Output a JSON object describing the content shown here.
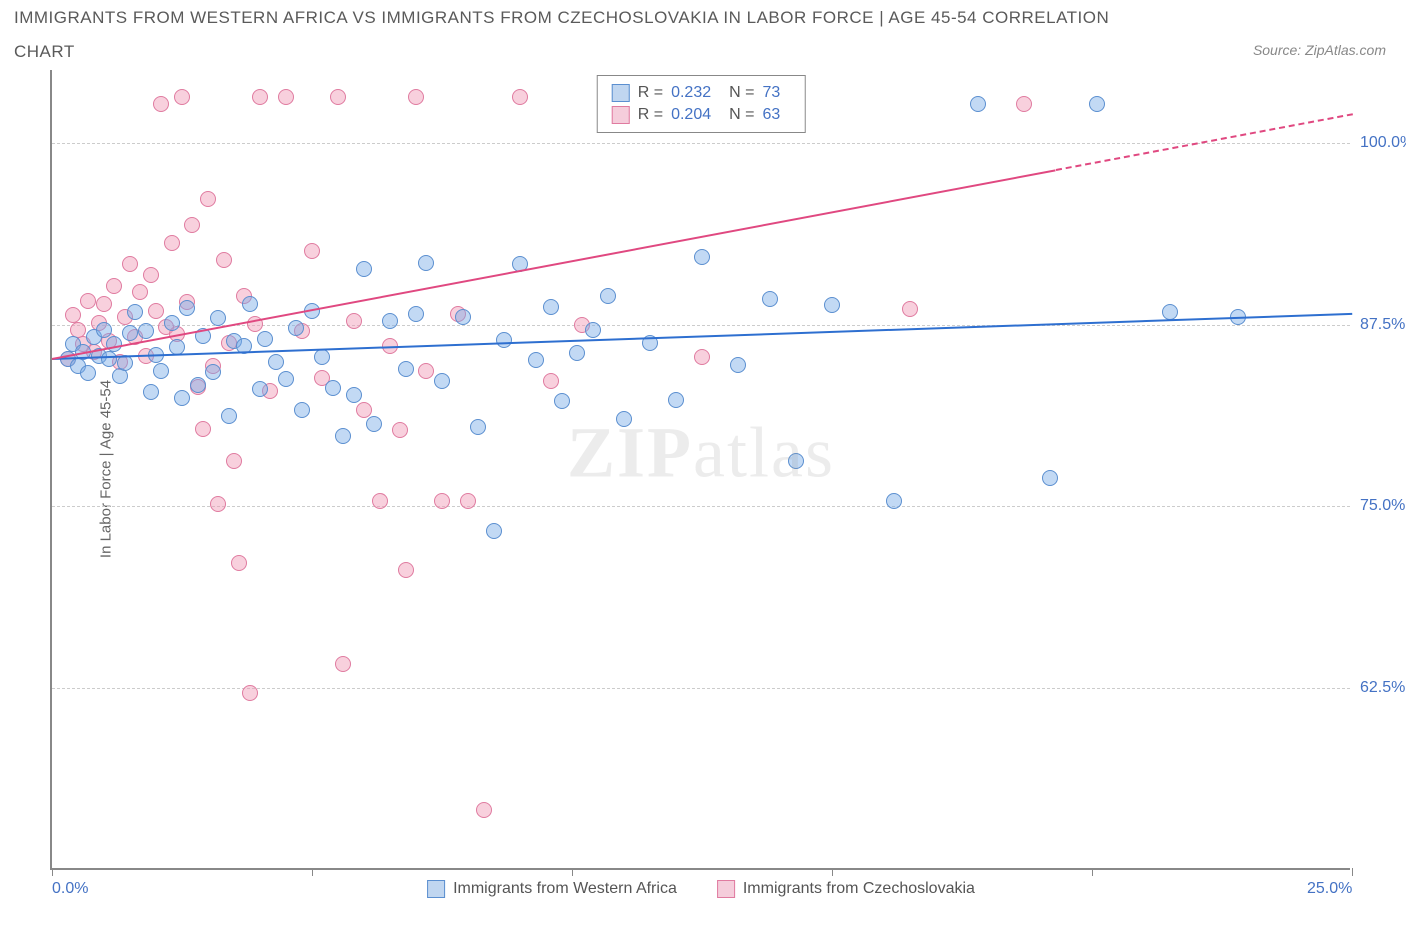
{
  "title": "IMMIGRANTS FROM WESTERN AFRICA VS IMMIGRANTS FROM CZECHOSLOVAKIA IN LABOR FORCE | AGE 45-54 CORRELATION",
  "subtitle": "CHART",
  "source": "Source: ZipAtlas.com",
  "y_axis_title": "In Labor Force | Age 45-54",
  "watermark_bold": "ZIP",
  "watermark_light": "atlas",
  "chart": {
    "type": "scatter",
    "background_color": "#ffffff",
    "grid_color": "#cccccc",
    "axis_color": "#888888",
    "xlim": [
      0,
      25
    ],
    "ylim": [
      50,
      105
    ],
    "x_ticks": [
      0,
      5,
      10,
      15,
      20,
      25
    ],
    "x_tick_labels": {
      "0": "0.0%",
      "25": "25.0%"
    },
    "y_ticks": [
      62.5,
      75.0,
      87.5,
      100.0
    ],
    "y_tick_labels": [
      "62.5%",
      "75.0%",
      "87.5%",
      "100.0%"
    ],
    "marker_radius": 8,
    "marker_opacity": 0.55,
    "series": [
      {
        "name": "Immigrants from Western Africa",
        "color_fill": "rgba(120,170,230,0.45)",
        "color_stroke": "#5b8fd0",
        "swatch_fill": "#c0d6f0",
        "swatch_border": "#5b8fd0",
        "trend_color": "#2e6fd0",
        "trend": {
          "x1": 0,
          "y1": 85.2,
          "x2": 25,
          "y2": 88.3,
          "dashed_after_x": null
        },
        "R": "0.232",
        "N": "73",
        "points": [
          [
            0.3,
            85
          ],
          [
            0.4,
            86
          ],
          [
            0.5,
            84.5
          ],
          [
            0.6,
            85.5
          ],
          [
            0.7,
            84
          ],
          [
            0.8,
            86.5
          ],
          [
            0.9,
            85.2
          ],
          [
            1.0,
            87
          ],
          [
            1.1,
            85
          ],
          [
            1.2,
            86
          ],
          [
            1.3,
            83.8
          ],
          [
            1.4,
            84.7
          ],
          [
            1.5,
            86.8
          ],
          [
            1.6,
            88.2
          ],
          [
            1.8,
            86.9
          ],
          [
            1.9,
            82.7
          ],
          [
            2.0,
            85.3
          ],
          [
            2.1,
            84.2
          ],
          [
            2.3,
            87.5
          ],
          [
            2.4,
            85.8
          ],
          [
            2.5,
            82.3
          ],
          [
            2.6,
            88.5
          ],
          [
            2.8,
            83.2
          ],
          [
            2.9,
            86.6
          ],
          [
            3.1,
            84.1
          ],
          [
            3.2,
            87.8
          ],
          [
            3.4,
            81.1
          ],
          [
            3.5,
            86.2
          ],
          [
            3.7,
            85.9
          ],
          [
            3.8,
            88.8
          ],
          [
            4.0,
            82.9
          ],
          [
            4.1,
            86.4
          ],
          [
            4.3,
            84.8
          ],
          [
            4.5,
            83.6
          ],
          [
            4.7,
            87.1
          ],
          [
            4.8,
            81.5
          ],
          [
            5.0,
            88.3
          ],
          [
            5.2,
            85.1
          ],
          [
            5.4,
            83
          ],
          [
            5.6,
            79.7
          ],
          [
            5.8,
            82.5
          ],
          [
            6.0,
            91.2
          ],
          [
            6.2,
            80.5
          ],
          [
            6.5,
            87.6
          ],
          [
            6.8,
            84.3
          ],
          [
            7.0,
            88.1
          ],
          [
            7.2,
            91.6
          ],
          [
            7.5,
            83.5
          ],
          [
            7.9,
            87.9
          ],
          [
            8.2,
            80.3
          ],
          [
            8.5,
            73.2
          ],
          [
            8.7,
            86.3
          ],
          [
            9.0,
            91.5
          ],
          [
            9.3,
            84.9
          ],
          [
            9.6,
            88.6
          ],
          [
            9.8,
            82.1
          ],
          [
            10.1,
            85.4
          ],
          [
            10.4,
            87
          ],
          [
            10.7,
            89.3
          ],
          [
            11.0,
            80.9
          ],
          [
            11.5,
            86.1
          ],
          [
            12.0,
            82.2
          ],
          [
            12.5,
            92
          ],
          [
            13.2,
            84.6
          ],
          [
            13.8,
            89.1
          ],
          [
            14.3,
            78
          ],
          [
            15.0,
            88.7
          ],
          [
            16.2,
            75.2
          ],
          [
            17.8,
            102.5
          ],
          [
            19.2,
            76.8
          ],
          [
            20.1,
            102.5
          ],
          [
            21.5,
            88.2
          ],
          [
            22.8,
            87.9
          ]
        ]
      },
      {
        "name": "Immigrants from Czechoslovakia",
        "color_fill": "rgba(240,150,180,0.45)",
        "color_stroke": "#e07ba0",
        "swatch_fill": "#f5cddb",
        "swatch_border": "#e07ba0",
        "trend_color": "#e04880",
        "trend": {
          "x1": 0,
          "y1": 85.2,
          "x2": 25,
          "y2": 102,
          "dashed_after_x": 19.3
        },
        "R": "0.204",
        "N": "63",
        "points": [
          [
            0.3,
            85
          ],
          [
            0.4,
            88
          ],
          [
            0.5,
            87
          ],
          [
            0.6,
            86
          ],
          [
            0.7,
            89
          ],
          [
            0.8,
            85.5
          ],
          [
            0.9,
            87.5
          ],
          [
            1.0,
            88.8
          ],
          [
            1.1,
            86.2
          ],
          [
            1.2,
            90
          ],
          [
            1.3,
            84.8
          ],
          [
            1.4,
            87.9
          ],
          [
            1.5,
            91.5
          ],
          [
            1.6,
            86.5
          ],
          [
            1.7,
            89.6
          ],
          [
            1.8,
            85.2
          ],
          [
            1.9,
            90.8
          ],
          [
            2.0,
            88.3
          ],
          [
            2.1,
            102.5
          ],
          [
            2.2,
            87.2
          ],
          [
            2.3,
            93
          ],
          [
            2.4,
            86.7
          ],
          [
            2.5,
            103
          ],
          [
            2.6,
            88.9
          ],
          [
            2.7,
            94.2
          ],
          [
            2.8,
            83.1
          ],
          [
            2.9,
            80.2
          ],
          [
            3.0,
            96
          ],
          [
            3.1,
            84.5
          ],
          [
            3.2,
            75
          ],
          [
            3.3,
            91.8
          ],
          [
            3.4,
            86.1
          ],
          [
            3.5,
            78
          ],
          [
            3.6,
            71
          ],
          [
            3.7,
            89.3
          ],
          [
            3.8,
            62
          ],
          [
            3.9,
            87.4
          ],
          [
            4.0,
            103
          ],
          [
            4.2,
            82.8
          ],
          [
            4.5,
            103
          ],
          [
            4.8,
            86.9
          ],
          [
            5.0,
            92.4
          ],
          [
            5.2,
            83.7
          ],
          [
            5.5,
            103
          ],
          [
            5.6,
            64
          ],
          [
            5.8,
            87.6
          ],
          [
            6.0,
            81.5
          ],
          [
            6.3,
            75.2
          ],
          [
            6.5,
            85.9
          ],
          [
            6.7,
            80.1
          ],
          [
            6.8,
            70.5
          ],
          [
            7.0,
            103
          ],
          [
            7.2,
            84.2
          ],
          [
            7.5,
            75.2
          ],
          [
            7.8,
            88.1
          ],
          [
            8.0,
            75.2
          ],
          [
            8.3,
            54
          ],
          [
            9.0,
            103
          ],
          [
            9.6,
            83.5
          ],
          [
            10.2,
            87.3
          ],
          [
            12.5,
            85.1
          ],
          [
            16.5,
            88.4
          ],
          [
            18.7,
            102.5
          ]
        ]
      }
    ]
  },
  "legend_top_label_R": "R =",
  "legend_top_label_N": "N ="
}
